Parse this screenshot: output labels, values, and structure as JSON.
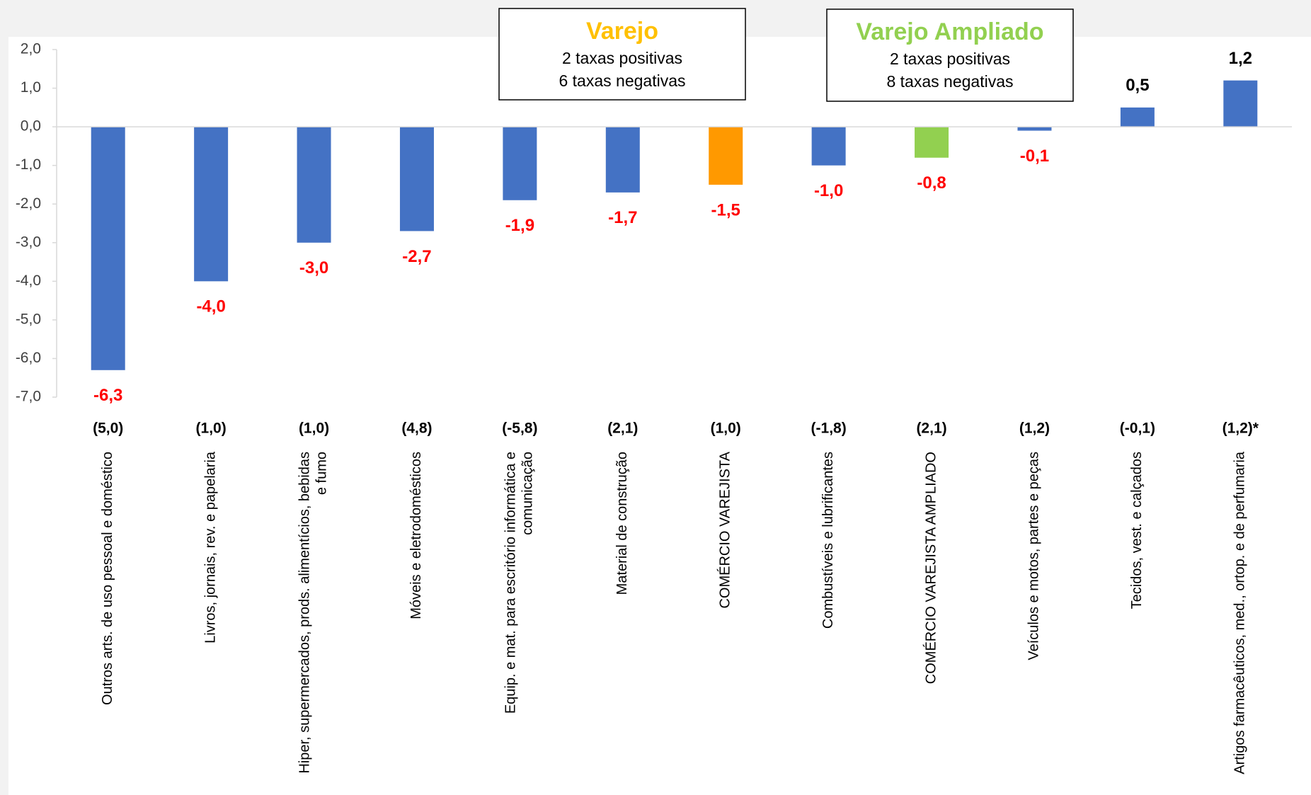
{
  "chart_data": {
    "type": "bar",
    "categories": [
      "Outros arts. de uso pessoal e doméstico",
      "Livros, jornais, rev. e papelaria",
      "Hiper, supermercados, prods.  alimentícios, bebidas e fumo",
      "Móveis e eletrodomésticos",
      "Equip. e mat. para escritório informática e comunicação",
      "Material de construção",
      "COMÉRCIO VAREJISTA",
      "Combustíveis e lubrificantes",
      "COMÉRCIO VAREJISTA AMPLIADO",
      "Veículos e motos, partes e peças",
      "Tecidos, vest. e calçados",
      "Artigos farmacêuticos, med., ortop. e de perfumaria"
    ],
    "values": [
      -6.3,
      -4.0,
      -3.0,
      -2.7,
      -1.9,
      -1.7,
      -1.5,
      -1.0,
      -0.8,
      -0.1,
      0.5,
      1.2
    ],
    "value_labels": [
      "-6,3",
      "-4,0",
      "-3,0",
      "-2,7",
      "-1,9",
      "-1,7",
      "-1,5",
      "-1,0",
      "-0,8",
      "-0,1",
      "0,5",
      "1,2"
    ],
    "sublabels": [
      "(5,0)",
      "(1,0)",
      "(1,0)",
      "(4,8)",
      "(-5,8)",
      "(2,1)",
      "(1,0)",
      "(-1,8)",
      "(2,1)",
      "(1,2)",
      "(-0,1)",
      "(1,2)*"
    ],
    "colors": [
      "#4472c4",
      "#4472c4",
      "#4472c4",
      "#4472c4",
      "#4472c4",
      "#4472c4",
      "#ff9900",
      "#4472c4",
      "#92d050",
      "#4472c4",
      "#4472c4",
      "#4472c4"
    ],
    "negative_label_color": "#ff0000",
    "positive_label_color": "#000000",
    "ylim": [
      -7.0,
      2.0
    ],
    "yticks": [
      {
        "value": 2.0,
        "label": "2,0"
      },
      {
        "value": 1.0,
        "label": "1,0"
      },
      {
        "value": 0.0,
        "label": "0,0"
      },
      {
        "value": -1.0,
        "label": "-1,0"
      },
      {
        "value": -2.0,
        "label": "-2,0"
      },
      {
        "value": -3.0,
        "label": "-3,0"
      },
      {
        "value": -4.0,
        "label": "-4,0"
      },
      {
        "value": -5.0,
        "label": "-5,0"
      },
      {
        "value": -6.0,
        "label": "-6,0"
      },
      {
        "value": -7.0,
        "label": "-7,0"
      }
    ],
    "annotations": [
      {
        "title": "Varejo",
        "color": "#ffc000",
        "lines": [
          "2 taxas positivas",
          "6 taxas negativas"
        ]
      },
      {
        "title": "Varejo Ampliado",
        "color": "#92d050",
        "lines": [
          "2 taxas positivas",
          "8 taxas negativas"
        ]
      }
    ]
  }
}
